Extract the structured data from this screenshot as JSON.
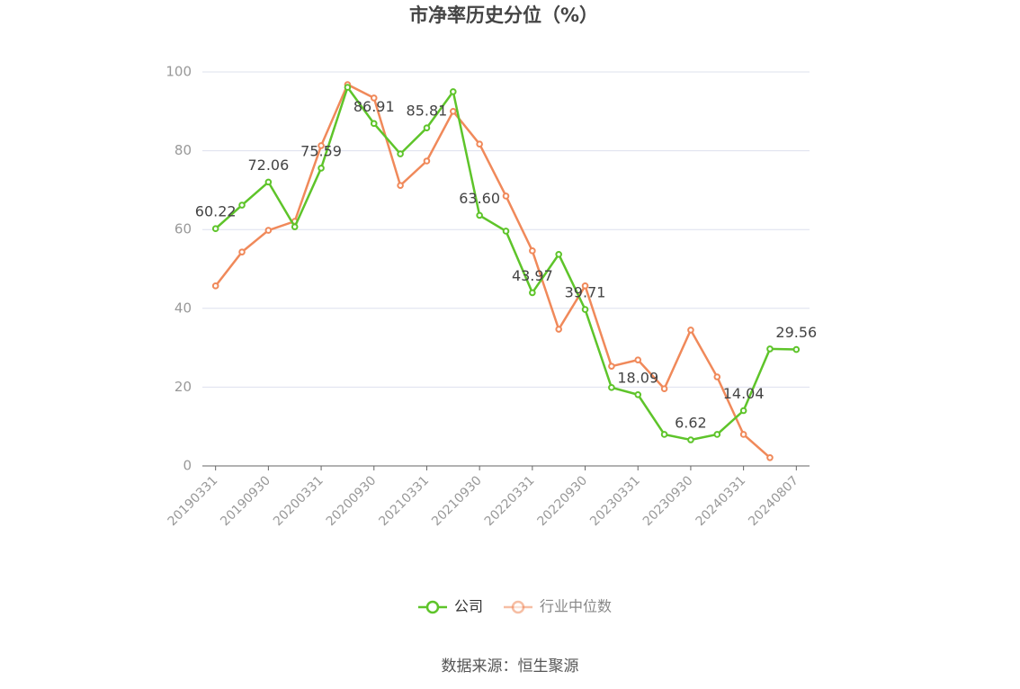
{
  "chart_data": {
    "type": "line",
    "title": "市净率历史分位（%）",
    "categories": [
      "20190331",
      null,
      "20190930",
      null,
      "20200331",
      null,
      "20200930",
      null,
      "20210331",
      null,
      "20210930",
      null,
      "20220331",
      null,
      "20220930",
      null,
      "20230331",
      null,
      "20230930",
      null,
      "20240331",
      null,
      "20240807"
    ],
    "series": [
      {
        "name": "公司",
        "color": "#5ec42a",
        "values": [
          60.22,
          66.2,
          72.06,
          60.7,
          75.59,
          96.1,
          86.91,
          79.2,
          85.81,
          95.0,
          63.6,
          59.6,
          43.97,
          53.7,
          39.71,
          19.9,
          18.09,
          8.0,
          6.62,
          8.0,
          14.04,
          29.7,
          29.56
        ],
        "value_labels": [
          "60.22",
          null,
          "72.06",
          null,
          "75.59",
          null,
          "86.91",
          null,
          "85.81",
          null,
          "63.60",
          null,
          "43.97",
          null,
          "39.71",
          null,
          "18.09",
          null,
          "6.62",
          null,
          "14.04",
          null,
          "29.56"
        ]
      },
      {
        "name": "行业中位数",
        "color": "#f0895a",
        "values": [
          45.7,
          54.3,
          59.8,
          62.1,
          81.3,
          96.8,
          93.4,
          71.2,
          77.4,
          90.0,
          81.7,
          68.5,
          54.6,
          34.7,
          45.7,
          25.3,
          26.9,
          19.6,
          34.5,
          22.6,
          8.0,
          2.1,
          null
        ]
      }
    ],
    "ylim": [
      0,
      100
    ],
    "yticks": [
      0,
      20,
      40,
      60,
      80,
      100
    ],
    "grid": true,
    "source": "数据来源：恒生聚源"
  }
}
